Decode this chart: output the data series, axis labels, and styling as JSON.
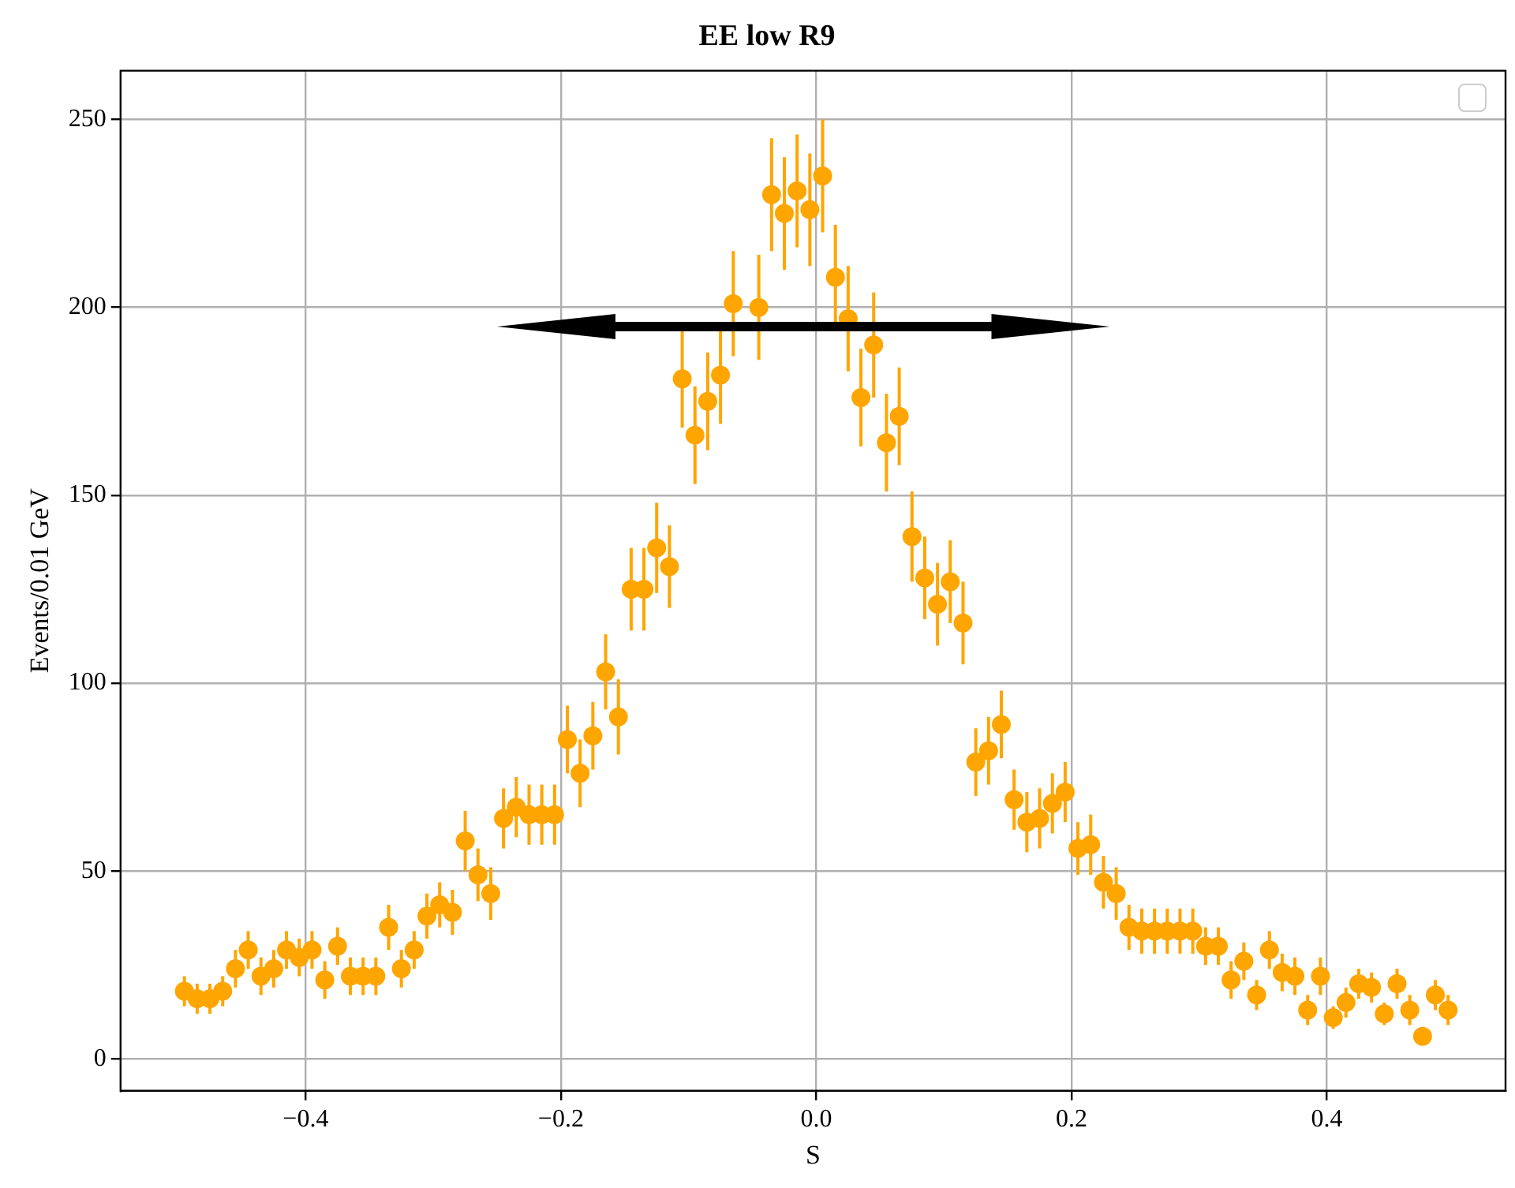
{
  "chart_data": {
    "type": "scatter",
    "title": "EE low R9",
    "xlabel": "S",
    "ylabel": "Events/0.01 GeV",
    "x": [
      -0.495,
      -0.485,
      -0.475,
      -0.465,
      -0.455,
      -0.445,
      -0.435,
      -0.425,
      -0.415,
      -0.405,
      -0.395,
      -0.385,
      -0.375,
      -0.365,
      -0.355,
      -0.345,
      -0.335,
      -0.325,
      -0.315,
      -0.305,
      -0.295,
      -0.285,
      -0.275,
      -0.265,
      -0.255,
      -0.245,
      -0.235,
      -0.225,
      -0.215,
      -0.205,
      -0.195,
      -0.185,
      -0.175,
      -0.165,
      -0.155,
      -0.145,
      -0.135,
      -0.125,
      -0.115,
      -0.105,
      -0.095,
      -0.085,
      -0.075,
      -0.065,
      -0.055,
      -0.045,
      -0.035,
      -0.025,
      -0.015,
      -0.005,
      0.005,
      0.015,
      0.025,
      0.035,
      0.045,
      0.055,
      0.065,
      0.075,
      0.085,
      0.095,
      0.105,
      0.115,
      0.125,
      0.135,
      0.145,
      0.155,
      0.165,
      0.175,
      0.185,
      0.195,
      0.205,
      0.215,
      0.225,
      0.235,
      0.245,
      0.255,
      0.265,
      0.275,
      0.285,
      0.295,
      0.305,
      0.315,
      0.325,
      0.335,
      0.345,
      0.355,
      0.365,
      0.375,
      0.385,
      0.395,
      0.405,
      0.415,
      0.425,
      0.435,
      0.445,
      0.455,
      0.465,
      0.475,
      0.485,
      0.495
    ],
    "series": [
      {
        "color": "#ffa500",
        "values": [
          18,
          16,
          16,
          18,
          24,
          29,
          22,
          24,
          29,
          27,
          29,
          21,
          30,
          22,
          22,
          22,
          35,
          24,
          29,
          38,
          41,
          39,
          58,
          49,
          44,
          64,
          67,
          65,
          65,
          65,
          85,
          76,
          86,
          103,
          91,
          125,
          125,
          136,
          131,
          181,
          166,
          175,
          182,
          201,
          null,
          200,
          230,
          225,
          231,
          226,
          235,
          208,
          197,
          176,
          190,
          164,
          171,
          139,
          128,
          121,
          127,
          116,
          79,
          82,
          89,
          69,
          63,
          64,
          68,
          71,
          56,
          57,
          47,
          44,
          35,
          34,
          34,
          34,
          34,
          34,
          30,
          30,
          21,
          26,
          17,
          29,
          23,
          22,
          13,
          22,
          11,
          15,
          20,
          19,
          12,
          20,
          13,
          6,
          17,
          13
        ],
        "errors": [
          4,
          4,
          4,
          4,
          5,
          5,
          5,
          5,
          5,
          5,
          5,
          5,
          5,
          5,
          5,
          5,
          6,
          5,
          5,
          6,
          6,
          6,
          8,
          7,
          7,
          8,
          8,
          8,
          8,
          8,
          9,
          9,
          9,
          10,
          10,
          11,
          11,
          12,
          11,
          13,
          13,
          13,
          13,
          14,
          null,
          14,
          15,
          15,
          15,
          15,
          15,
          14,
          14,
          13,
          14,
          13,
          13,
          12,
          11,
          11,
          11,
          11,
          9,
          9,
          9,
          8,
          8,
          8,
          8,
          8,
          7,
          8,
          7,
          7,
          6,
          6,
          6,
          6,
          6,
          6,
          5,
          5,
          5,
          5,
          4,
          5,
          5,
          5,
          4,
          5,
          3,
          4,
          4,
          4,
          3,
          4,
          4,
          2,
          4,
          4
        ]
      }
    ],
    "xlim": [
      -0.545,
      0.54
    ],
    "ylim": [
      -8.5,
      263
    ],
    "xticks": [
      {
        "value": -0.4,
        "label": "−0.4"
      },
      {
        "value": -0.2,
        "label": "−0.2"
      },
      {
        "value": 0,
        "label": "0.0"
      },
      {
        "value": 0.2,
        "label": "0.2"
      },
      {
        "value": 0.4,
        "label": "0.4"
      }
    ],
    "yticks": [
      0,
      50,
      100,
      150,
      200,
      250
    ],
    "grid": true,
    "marker": "circle"
  }
}
